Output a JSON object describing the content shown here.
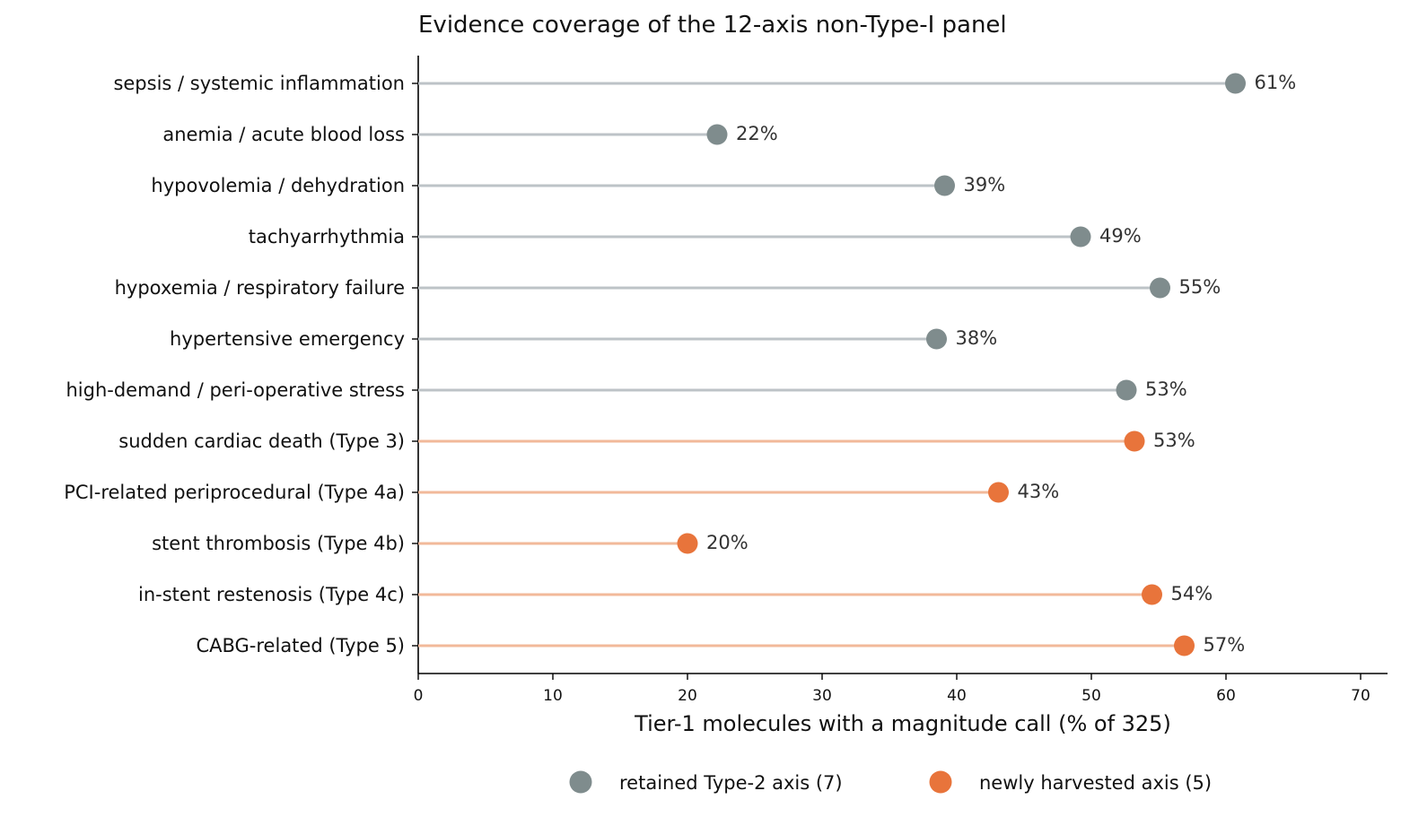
{
  "chart_data": {
    "type": "lollipop",
    "title": "Evidence coverage of the 12-axis non-Type-I panel",
    "xlabel": "Tier-1 molecules with a magnitude call (% of 325)",
    "ylabel": "",
    "xlim": [
      0,
      72
    ],
    "xticks": [
      0,
      10,
      20,
      30,
      40,
      50,
      60,
      70
    ],
    "grid": false,
    "legend_position": "bottom-center",
    "series": [
      {
        "name": "retained Type-2 axis (7)",
        "group": "retained",
        "color": "#7f8c8d",
        "stem_color": "#bdc3c7"
      },
      {
        "name": "newly harvested axis (5)",
        "group": "new",
        "color": "#e8743b",
        "stem_color": "#f2b99a"
      }
    ],
    "items": [
      {
        "label": "sepsis / systemic inflammation",
        "value": 60.7,
        "value_label": "61%",
        "group": "retained"
      },
      {
        "label": "anemia / acute blood loss",
        "value": 22.2,
        "value_label": "22%",
        "group": "retained"
      },
      {
        "label": "hypovolemia / dehydration",
        "value": 39.1,
        "value_label": "39%",
        "group": "retained"
      },
      {
        "label": "tachyarrhythmia",
        "value": 49.2,
        "value_label": "49%",
        "group": "retained"
      },
      {
        "label": "hypoxemia / respiratory failure",
        "value": 55.1,
        "value_label": "55%",
        "group": "retained"
      },
      {
        "label": "hypertensive emergency",
        "value": 38.5,
        "value_label": "38%",
        "group": "retained"
      },
      {
        "label": "high-demand / peri-operative stress",
        "value": 52.6,
        "value_label": "53%",
        "group": "retained"
      },
      {
        "label": "sudden cardiac death (Type 3)",
        "value": 53.2,
        "value_label": "53%",
        "group": "new"
      },
      {
        "label": "PCI-related periprocedural (Type 4a)",
        "value": 43.1,
        "value_label": "43%",
        "group": "new"
      },
      {
        "label": "stent thrombosis (Type 4b)",
        "value": 20.0,
        "value_label": "20%",
        "group": "new"
      },
      {
        "label": "in-stent restenosis (Type 4c)",
        "value": 54.5,
        "value_label": "54%",
        "group": "new"
      },
      {
        "label": "CABG-related (Type 5)",
        "value": 56.9,
        "value_label": "57%",
        "group": "new"
      }
    ]
  }
}
